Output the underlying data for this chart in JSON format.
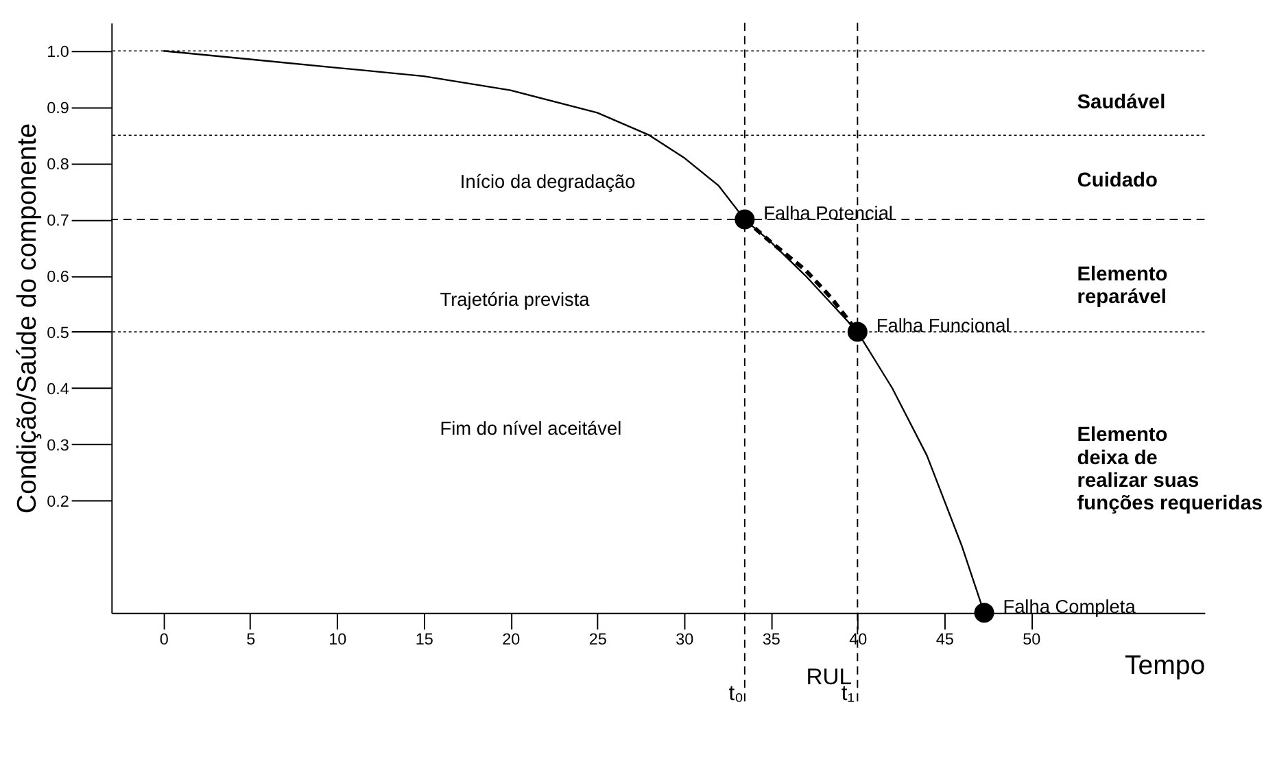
{
  "chart_data": {
    "type": "line",
    "xlabel": "Tempo",
    "ylabel": "Condição/Saúde do componente",
    "xlim": [
      -3,
      60
    ],
    "ylim": [
      0,
      1.05
    ],
    "xticks": [
      0,
      5,
      10,
      15,
      20,
      25,
      30,
      35,
      40,
      45,
      50
    ],
    "yticks": [
      0.2,
      0.3,
      0.4,
      0.5,
      0.6,
      0.7,
      0.8,
      0.9,
      {
        "value": 1.0,
        "label": "1.0"
      }
    ],
    "grid": false,
    "series": [
      {
        "color": "#000000",
        "line_style": "solid",
        "x": [
          0,
          5,
          10,
          15,
          20,
          25,
          28,
          30,
          32,
          33.5,
          35,
          37,
          40,
          42,
          44,
          46,
          47.3
        ],
        "values": [
          1.0,
          0.985,
          0.97,
          0.955,
          0.93,
          0.89,
          0.85,
          0.81,
          0.76,
          0.7,
          0.66,
          0.6,
          0.5,
          0.4,
          0.28,
          0.12,
          0.0
        ]
      },
      {
        "color": "#000000",
        "line_style": "dashed",
        "x": [
          33.5,
          35,
          37,
          38.5,
          40
        ],
        "values": [
          0.7,
          0.66,
          0.61,
          0.56,
          0.5
        ]
      },
      {
        "type": "scatter",
        "color": "#000000",
        "marker": "circle",
        "x": [
          33.5,
          40,
          47.3
        ],
        "values": [
          0.7,
          0.5,
          0.0
        ]
      }
    ],
    "ref_lines": [
      {
        "axis": "y",
        "value": 1.0,
        "line_style": "dotted"
      },
      {
        "axis": "y",
        "value": 0.85,
        "line_style": "dotted"
      },
      {
        "axis": "y",
        "value": 0.7,
        "line_style": "dashed"
      },
      {
        "axis": "y",
        "value": 0.5,
        "line_style": "dotted"
      },
      {
        "axis": "x",
        "value": 33.5,
        "label": "t₀",
        "line_style": "dashed"
      },
      {
        "axis": "x",
        "value": 40,
        "label": "t₁",
        "line_style": "dashed"
      }
    ],
    "annotations": [
      {
        "text": "Falha Potencial",
        "x": 33.5,
        "y": 0.7
      },
      {
        "text": "Falha Funcional",
        "x": 40,
        "y": 0.5
      },
      {
        "text": "Falha Completa",
        "x": 47.3,
        "y": 0.0
      },
      "Início  da degradação",
      "Trajetória prevista",
      "Fim do nível  aceitável",
      "Saudável",
      "Cuidado",
      "Elemento\nreparável",
      "Elemento\ndeixa de\nrealizar suas\nfunções requeridas",
      "RUL"
    ]
  }
}
